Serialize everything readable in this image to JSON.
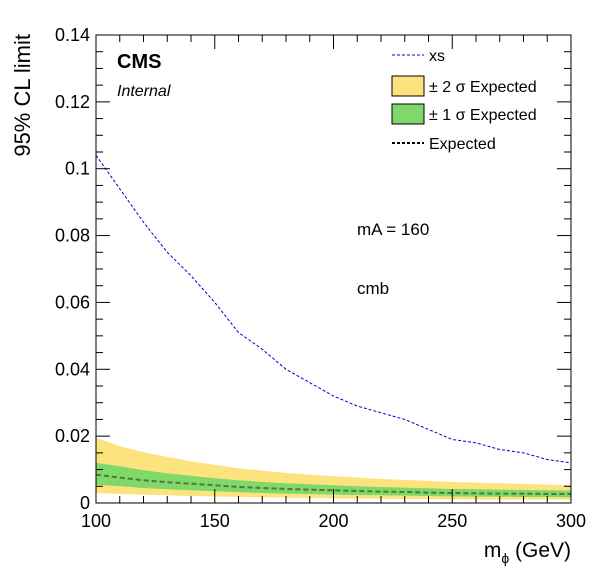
{
  "chart_data": {
    "type": "area",
    "title": "",
    "xlabel_base": "m",
    "xlabel_sub": "ϕ",
    "xlabel_rest": " (GeV)",
    "ylabel": "95% CL limit",
    "xlim": [
      100,
      300
    ],
    "ylim": [
      0,
      0.14
    ],
    "x_ticks": [
      "100",
      "150",
      "200",
      "250",
      "300"
    ],
    "x_tick_values": [
      100,
      150,
      200,
      250,
      300
    ],
    "y_ticks": [
      "0",
      "0.02",
      "0.04",
      "0.06",
      "0.08",
      "0.1",
      "0.12",
      "0.14"
    ],
    "y_tick_values": [
      0,
      0.02,
      0.04,
      0.06,
      0.08,
      0.1,
      0.12,
      0.14
    ],
    "grid": false,
    "legend_position": "top-right",
    "x": [
      100,
      110,
      120,
      130,
      140,
      150,
      160,
      170,
      180,
      190,
      200,
      210,
      220,
      230,
      240,
      250,
      260,
      270,
      280,
      290,
      300
    ],
    "series": [
      {
        "name": "xs",
        "kind": "line",
        "style": "dashed",
        "color": "#0000cc",
        "values": [
          0.104,
          0.094,
          0.084,
          0.075,
          0.068,
          0.06,
          0.051,
          0.046,
          0.04,
          0.036,
          0.032,
          0.029,
          0.027,
          0.025,
          0.022,
          0.019,
          0.018,
          0.016,
          0.015,
          0.013,
          0.012
        ]
      },
      {
        "name": "± 2 σ Expected",
        "kind": "band",
        "color": "#fde37d",
        "lower": [
          0.003,
          0.0027,
          0.0025,
          0.0023,
          0.0021,
          0.002,
          0.0018,
          0.0017,
          0.0016,
          0.0015,
          0.0014,
          0.0013,
          0.0013,
          0.0012,
          0.0012,
          0.0011,
          0.0011,
          0.001,
          0.001,
          0.001,
          0.001
        ],
        "upper": [
          0.0195,
          0.017,
          0.0152,
          0.0138,
          0.0125,
          0.0114,
          0.0104,
          0.0097,
          0.009,
          0.0085,
          0.008,
          0.0076,
          0.0072,
          0.0069,
          0.0066,
          0.0063,
          0.0061,
          0.0059,
          0.0057,
          0.0055,
          0.0053
        ]
      },
      {
        "name": "± 1 σ Expected",
        "kind": "band",
        "color": "#7fd869",
        "lower": [
          0.0055,
          0.005,
          0.0045,
          0.0041,
          0.0038,
          0.0035,
          0.0032,
          0.003,
          0.0028,
          0.0027,
          0.0025,
          0.0024,
          0.0023,
          0.0022,
          0.0021,
          0.002,
          0.0019,
          0.0019,
          0.0018,
          0.0018,
          0.0017
        ],
        "upper": [
          0.012,
          0.011,
          0.0098,
          0.0089,
          0.0081,
          0.0074,
          0.0068,
          0.0063,
          0.0059,
          0.0056,
          0.0053,
          0.005,
          0.0048,
          0.0046,
          0.0044,
          0.0042,
          0.0041,
          0.004,
          0.0039,
          0.0038,
          0.0037
        ]
      },
      {
        "name": "Expected",
        "kind": "line",
        "style": "dotted",
        "color": "#000000",
        "values": [
          0.0085,
          0.0076,
          0.0068,
          0.0062,
          0.0058,
          0.0053,
          0.0048,
          0.0045,
          0.0042,
          0.004,
          0.0038,
          0.0036,
          0.0034,
          0.0033,
          0.0031,
          0.003,
          0.0029,
          0.0028,
          0.0028,
          0.0027,
          0.0027
        ]
      }
    ],
    "annotations": {
      "experiment": "CMS",
      "status": "Internal",
      "mass_label": "mA = 160",
      "channel": "cmb"
    }
  }
}
